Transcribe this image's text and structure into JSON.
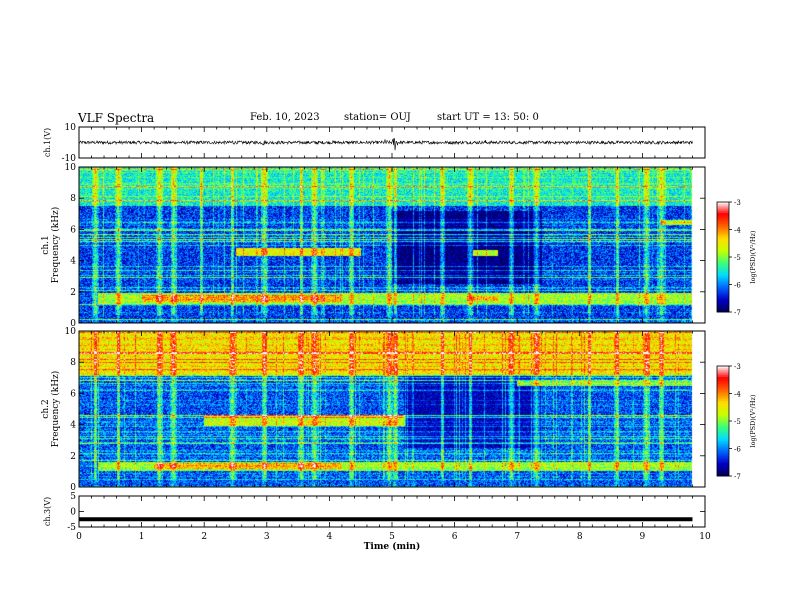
{
  "header": {
    "title": "VLF Spectra",
    "date": "Feb. 10, 2023",
    "station": "station= OUJ",
    "start": "start  UT  =   13: 50: 0"
  },
  "chart_data": [
    {
      "type": "line",
      "panel": "ch1-waveform",
      "ylabel": "ch.1(V)",
      "ylim": [
        -10,
        10
      ],
      "y_ticks": [
        "10",
        "-10"
      ],
      "x_range": [
        0,
        10
      ],
      "color": "#000000",
      "baseline": 0,
      "typical_amplitude": 1.0,
      "bursts": [
        {
          "t": 2.45,
          "amp": 2.5
        },
        {
          "t": 2.95,
          "amp": 2.2
        },
        {
          "t": 3.8,
          "amp": 1.8
        },
        {
          "t": 4.9,
          "amp": 2.5
        },
        {
          "t": 5.05,
          "amp": 6.0
        },
        {
          "t": 6.5,
          "amp": 1.8
        },
        {
          "t": 7.9,
          "amp": 1.6
        }
      ]
    },
    {
      "type": "heatmap",
      "panel": "ch1-spectrogram",
      "ylabel": "Frequency (kHz)",
      "channel_label": "ch.1",
      "ylim": [
        0,
        10
      ],
      "y_ticks": [
        "0",
        "2",
        "4",
        "6",
        "8",
        "10"
      ],
      "x_range": [
        0,
        10
      ],
      "data_extent_min": 9.8,
      "background_level": -6.3,
      "quiet_zone": {
        "from": 5.0,
        "to": 7.4,
        "level": -6.8
      },
      "bands": [
        {
          "f_from": 1.2,
          "f_to": 1.9,
          "t_from": 0.3,
          "t_to": 9.8,
          "level": -5.0
        },
        {
          "f_from": 1.35,
          "f_to": 1.75,
          "t_from": 1.0,
          "t_to": 4.2,
          "level": -4.2
        },
        {
          "f_from": 1.4,
          "f_to": 1.7,
          "t_from": 6.2,
          "t_to": 6.7,
          "level": -4.3
        },
        {
          "f_from": 4.3,
          "f_to": 4.8,
          "t_from": 2.5,
          "t_to": 4.5,
          "level": -4.6
        },
        {
          "f_from": 4.3,
          "f_to": 4.7,
          "t_from": 6.3,
          "t_to": 6.7,
          "level": -4.8
        },
        {
          "f_from": 6.3,
          "f_to": 6.6,
          "t_from": 9.3,
          "t_to": 9.8,
          "level": -5.0
        },
        {
          "f_from": 7.5,
          "f_to": 10,
          "t_from": 0,
          "t_to": 9.8,
          "level": -5.5
        }
      ],
      "spikes": [
        0.25,
        0.62,
        1.28,
        1.5,
        1.95,
        2.45,
        2.95,
        3.55,
        3.75,
        4.35,
        4.95,
        5.05,
        5.8,
        6.25,
        6.9,
        7.3,
        8.15,
        8.6,
        9.05,
        9.3
      ]
    },
    {
      "type": "heatmap",
      "panel": "ch2-spectrogram",
      "ylabel": "Frequency (kHz)",
      "channel_label": "ch.2",
      "ylim": [
        0,
        10
      ],
      "y_ticks": [
        "0",
        "2",
        "4",
        "6",
        "8",
        "10"
      ],
      "x_range": [
        0,
        10
      ],
      "data_extent_min": 9.8,
      "background_level": -6.2,
      "quiet_zone": {
        "from": 5.2,
        "to": 7.4,
        "level": -6.6
      },
      "bands": [
        {
          "f_from": 1.0,
          "f_to": 1.6,
          "t_from": 0.3,
          "t_to": 9.8,
          "level": -5.0
        },
        {
          "f_from": 1.1,
          "f_to": 1.5,
          "t_from": 1.2,
          "t_to": 4.2,
          "level": -4.3
        },
        {
          "f_from": 3.9,
          "f_to": 4.6,
          "t_from": 2.0,
          "t_to": 5.2,
          "level": -4.8
        },
        {
          "f_from": 6.5,
          "f_to": 6.8,
          "t_from": 7.0,
          "t_to": 9.8,
          "level": -5.2
        },
        {
          "f_from": 7.2,
          "f_to": 10,
          "t_from": 0,
          "t_to": 9.8,
          "level": -4.5
        }
      ],
      "spikes": [
        0.25,
        0.62,
        1.28,
        1.5,
        2.45,
        2.95,
        3.55,
        3.75,
        4.35,
        4.95,
        5.05,
        5.8,
        6.25,
        6.9,
        7.3,
        8.15,
        8.6,
        9.05,
        9.3
      ]
    },
    {
      "type": "line",
      "panel": "ch3-waveform",
      "ylabel": "ch.3(V)",
      "ylim": [
        -5,
        5
      ],
      "y_ticks": [
        "5",
        "0",
        "-5"
      ],
      "x_range": [
        0,
        10
      ],
      "color": "#000000",
      "value": -2.5,
      "xlabel": "Time  (min)",
      "x_ticks": [
        "0",
        "1",
        "2",
        "3",
        "4",
        "5",
        "6",
        "7",
        "8",
        "9",
        "10"
      ]
    }
  ],
  "colorbar": {
    "label": "log(PSD)(V²/Hz)",
    "min": -7,
    "max": -3,
    "ticks": [
      "-3",
      "-4",
      "-5",
      "-6",
      "-7"
    ],
    "colors": [
      "#000050",
      "#0000c8",
      "#0064ff",
      "#00dcff",
      "#3cff78",
      "#c8ff00",
      "#ffdc00",
      "#ff6400",
      "#ff0000",
      "#ffffff"
    ]
  }
}
